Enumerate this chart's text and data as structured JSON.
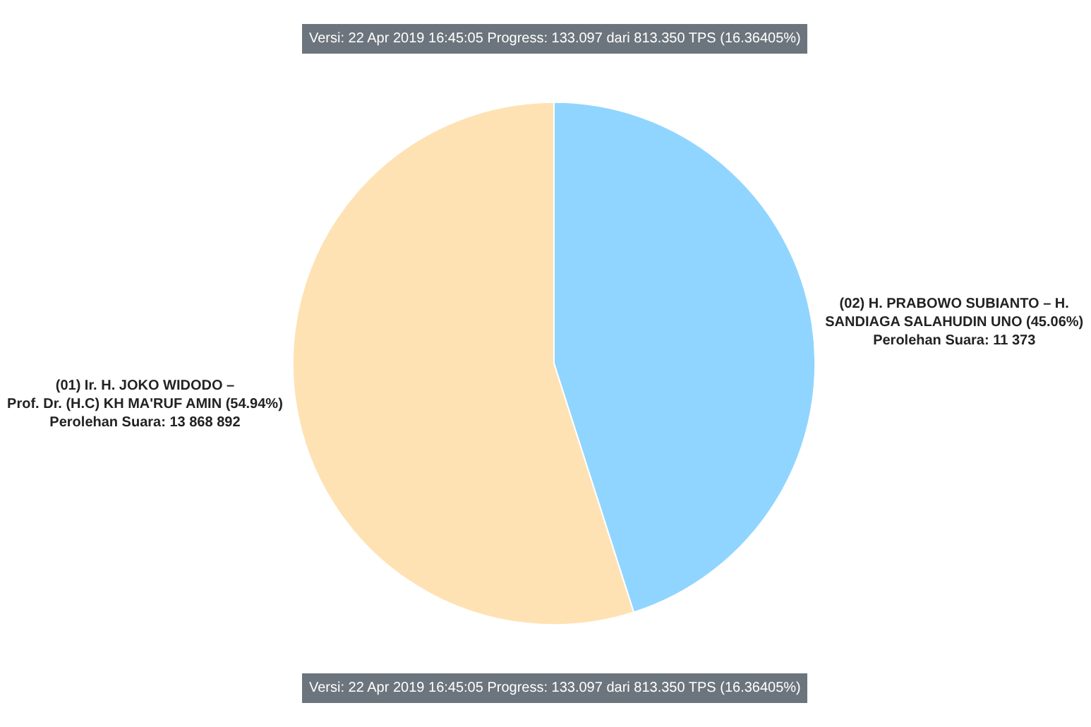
{
  "chart_data": {
    "type": "pie",
    "categories": [
      "(02) H. PRABOWO SUBIANTO – H. SANDIAGA SALAHUDIN UNO",
      "(01) Ir. H. JOKO WIDODO – Prof. Dr. (H.C) KH MA'RUF AMIN"
    ],
    "values": [
      45.06,
      54.94
    ],
    "value_labels": [
      "(45.06%)\nPerolehan Suara: 11 373",
      "(54.94%)\nPerolehan Suara: 13 868 892"
    ],
    "colors": [
      "#90d5ff",
      "#ffe2b3"
    ],
    "annotations": [
      "Versi: 22 Apr 2019 16:45:05 Progress: 133.097 dari 813.350 TPS (16.36405%)",
      "Versi: 22 Apr 2019 16:45:05 Progress: 133.097 dari 813.350 TPS (16.36405%)"
    ],
    "legend": false
  }
}
